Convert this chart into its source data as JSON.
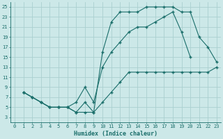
{
  "xlabel": "Humidex (Indice chaleur)",
  "bg_color": "#cce8e8",
  "grid_color": "#aad0d0",
  "line_color": "#1a6e6a",
  "xlim": [
    -0.5,
    23.5
  ],
  "ylim": [
    2,
    26
  ],
  "xticks": [
    0,
    1,
    2,
    3,
    4,
    5,
    6,
    7,
    8,
    9,
    10,
    11,
    12,
    13,
    14,
    15,
    16,
    17,
    18,
    19,
    20,
    21,
    22,
    23
  ],
  "yticks": [
    3,
    5,
    7,
    9,
    11,
    13,
    15,
    17,
    19,
    21,
    23,
    25
  ],
  "line1_x": [
    1,
    2,
    3,
    4,
    5,
    6,
    7,
    8,
    9,
    10,
    11,
    12,
    13,
    14,
    15,
    16,
    17,
    18,
    19,
    20,
    21,
    22,
    23
  ],
  "line1_y": [
    8,
    7,
    6,
    5,
    5,
    5,
    4,
    4,
    4,
    6,
    8,
    10,
    12,
    12,
    12,
    12,
    12,
    12,
    12,
    12,
    12,
    12,
    13
  ],
  "line2_x": [
    1,
    2,
    3,
    4,
    5,
    6,
    7,
    8,
    9,
    10,
    11,
    12,
    13,
    14,
    15,
    16,
    17,
    18,
    19,
    20,
    21,
    22,
    23
  ],
  "line2_y": [
    8,
    7,
    6,
    5,
    5,
    5,
    4,
    6,
    4,
    16,
    22,
    24,
    24,
    24,
    25,
    25,
    25,
    25,
    24,
    24,
    19,
    17,
    14
  ],
  "line3_x": [
    1,
    2,
    3,
    4,
    5,
    6,
    7,
    8,
    9,
    10,
    11,
    12,
    13,
    14,
    15,
    16,
    17,
    18,
    19,
    20
  ],
  "line3_y": [
    8,
    7,
    6,
    5,
    5,
    5,
    6,
    9,
    6,
    13,
    16,
    18,
    20,
    21,
    21,
    22,
    23,
    24,
    20,
    15
  ]
}
